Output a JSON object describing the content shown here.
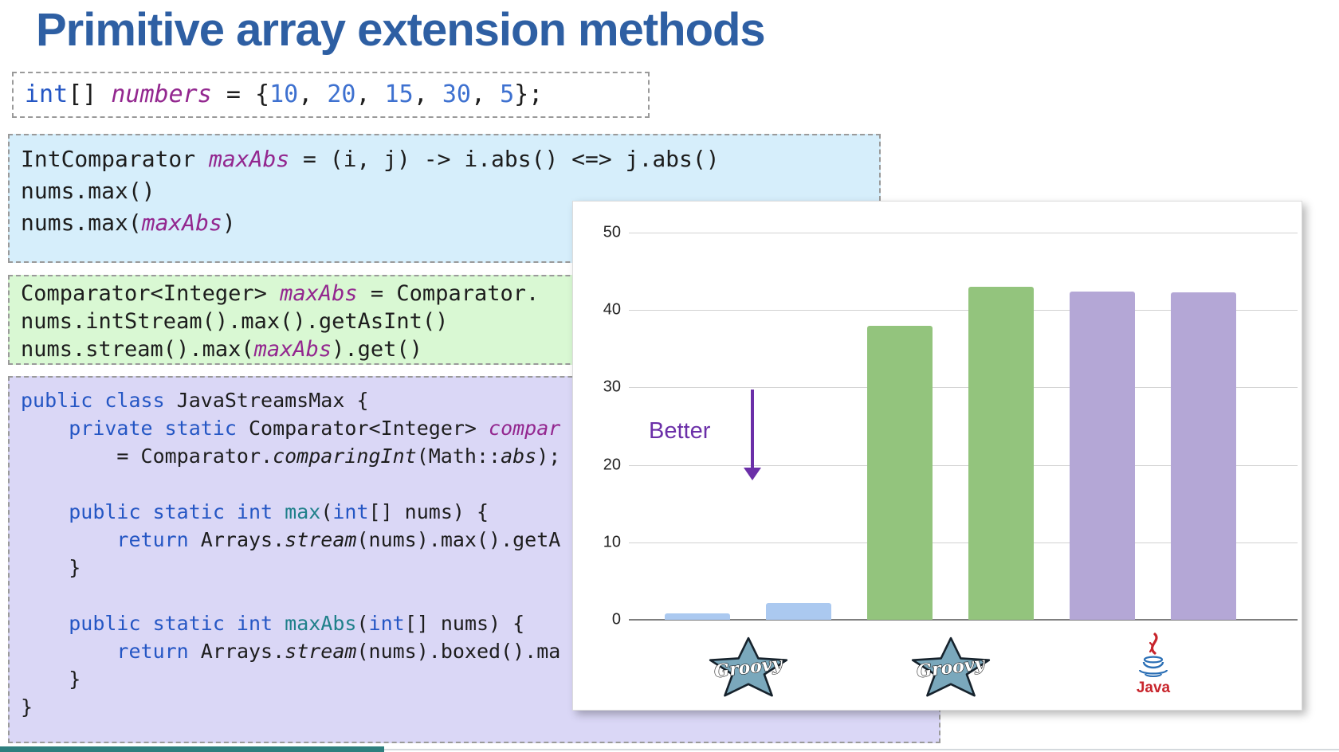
{
  "title": {
    "text": "Primitive array extension methods",
    "color": "#2e5fa3"
  },
  "syntax_palette": {
    "kw": "#2456c4",
    "id": "#93278f",
    "num": "#3e71d0",
    "meth": "#1f808a",
    "pl": "#1d1d1d"
  },
  "code_boxes": [
    {
      "name": "int-array-declaration",
      "bg": "#ffffff",
      "lines": [
        [
          {
            "t": "int",
            "s": "kw"
          },
          {
            "t": "[] ",
            "s": "pl"
          },
          {
            "t": "numbers",
            "s": "id",
            "it": true
          },
          {
            "t": " = {",
            "s": "pl"
          },
          {
            "t": "10",
            "s": "num"
          },
          {
            "t": ", ",
            "s": "pl"
          },
          {
            "t": "20",
            "s": "num"
          },
          {
            "t": ", ",
            "s": "pl"
          },
          {
            "t": "15",
            "s": "num"
          },
          {
            "t": ", ",
            "s": "pl"
          },
          {
            "t": "30",
            "s": "num"
          },
          {
            "t": ", ",
            "s": "pl"
          },
          {
            "t": "5",
            "s": "num"
          },
          {
            "t": "};",
            "s": "pl"
          }
        ]
      ]
    },
    {
      "name": "groovy-intcomparator-example",
      "bg": "#d6eefb",
      "lines": [
        [
          {
            "t": "IntComparator ",
            "s": "pl"
          },
          {
            "t": "maxAbs",
            "s": "id",
            "it": true
          },
          {
            "t": " = (i, j) -> i.abs() <=> j.abs()",
            "s": "pl"
          }
        ],
        [
          {
            "t": "nums.max()",
            "s": "pl"
          }
        ],
        [
          {
            "t": "nums.max(",
            "s": "pl"
          },
          {
            "t": "maxAbs",
            "s": "id",
            "it": true
          },
          {
            "t": ")",
            "s": "pl"
          }
        ]
      ]
    },
    {
      "name": "groovy-comparator-example",
      "bg": "#d9f8d3",
      "lines": [
        [
          {
            "t": "Comparator<Integer> ",
            "s": "pl"
          },
          {
            "t": "maxAbs",
            "s": "id",
            "it": true
          },
          {
            "t": " = Comparator.",
            "s": "pl"
          }
        ],
        [
          {
            "t": "nums.intStream().max().getAsInt()",
            "s": "pl"
          }
        ],
        [
          {
            "t": "nums.stream().max(",
            "s": "pl"
          },
          {
            "t": "maxAbs",
            "s": "id",
            "it": true
          },
          {
            "t": ").get()",
            "s": "pl"
          }
        ]
      ]
    },
    {
      "name": "java-streams-class",
      "bg": "#dad7f6",
      "lines": [
        [
          {
            "t": "public class ",
            "s": "kw"
          },
          {
            "t": "JavaStreamsMax {",
            "s": "pl"
          }
        ],
        [
          {
            "t": "    ",
            "s": "pl"
          },
          {
            "t": "private static ",
            "s": "kw"
          },
          {
            "t": "Comparator<Integer> ",
            "s": "pl"
          },
          {
            "t": "compar",
            "s": "id",
            "it": true
          }
        ],
        [
          {
            "t": "        = Comparator.",
            "s": "pl"
          },
          {
            "t": "comparingInt",
            "s": "pl",
            "it": true
          },
          {
            "t": "(Math::",
            "s": "pl"
          },
          {
            "t": "abs",
            "s": "pl",
            "it": true
          },
          {
            "t": ");",
            "s": "pl"
          }
        ],
        [],
        [
          {
            "t": "    ",
            "s": "pl"
          },
          {
            "t": "public static int ",
            "s": "kw"
          },
          {
            "t": "max",
            "s": "meth"
          },
          {
            "t": "(",
            "s": "pl"
          },
          {
            "t": "int",
            "s": "kw"
          },
          {
            "t": "[] nums) {",
            "s": "pl"
          }
        ],
        [
          {
            "t": "        ",
            "s": "pl"
          },
          {
            "t": "return",
            "s": "kw"
          },
          {
            "t": " Arrays.",
            "s": "pl"
          },
          {
            "t": "stream",
            "s": "pl",
            "it": true
          },
          {
            "t": "(nums).max().getA",
            "s": "pl"
          }
        ],
        [
          {
            "t": "    }",
            "s": "pl"
          }
        ],
        [],
        [
          {
            "t": "    ",
            "s": "pl"
          },
          {
            "t": "public static int ",
            "s": "kw"
          },
          {
            "t": "maxAbs",
            "s": "meth"
          },
          {
            "t": "(",
            "s": "pl"
          },
          {
            "t": "int",
            "s": "kw"
          },
          {
            "t": "[] nums) {",
            "s": "pl"
          }
        ],
        [
          {
            "t": "        ",
            "s": "pl"
          },
          {
            "t": "return",
            "s": "kw"
          },
          {
            "t": " Arrays.",
            "s": "pl"
          },
          {
            "t": "stream",
            "s": "pl",
            "it": true
          },
          {
            "t": "(nums).boxed().ma",
            "s": "pl"
          }
        ],
        [
          {
            "t": "    }",
            "s": "pl"
          }
        ],
        [
          {
            "t": "}",
            "s": "pl"
          }
        ]
      ]
    }
  ],
  "chart_data": {
    "type": "bar",
    "title": "",
    "xlabel": "",
    "ylabel": "",
    "ylim": [
      0,
      50
    ],
    "yticks": [
      0,
      10,
      20,
      30,
      40,
      50
    ],
    "grid": true,
    "bars": [
      {
        "group": "Groovy",
        "value": 0.8,
        "color": "#abc9f0"
      },
      {
        "group": "Groovy",
        "value": 2.2,
        "color": "#abc9f0"
      },
      {
        "group": "Groovy",
        "value": 38.0,
        "color": "#93c47d"
      },
      {
        "group": "Groovy",
        "value": 43.0,
        "color": "#93c47d"
      },
      {
        "group": "Java",
        "value": 42.4,
        "color": "#b4a7d6"
      },
      {
        "group": "Java",
        "value": 42.3,
        "color": "#b4a7d6"
      }
    ],
    "groups": [
      {
        "label": "Groovy",
        "logo": "groovy-star"
      },
      {
        "label": "Groovy",
        "logo": "groovy-star"
      },
      {
        "label": "Java",
        "logo": "java-cup"
      }
    ],
    "annotation": {
      "text": "Better",
      "color": "#6b2fa8",
      "direction": "down"
    },
    "axis_color": "#7f7f7f",
    "grid_color": "#d2d2d2",
    "tick_color": "#222222"
  },
  "footer": {
    "accent_color": "#2e7f7e",
    "line_color": "#d4d9dd"
  }
}
